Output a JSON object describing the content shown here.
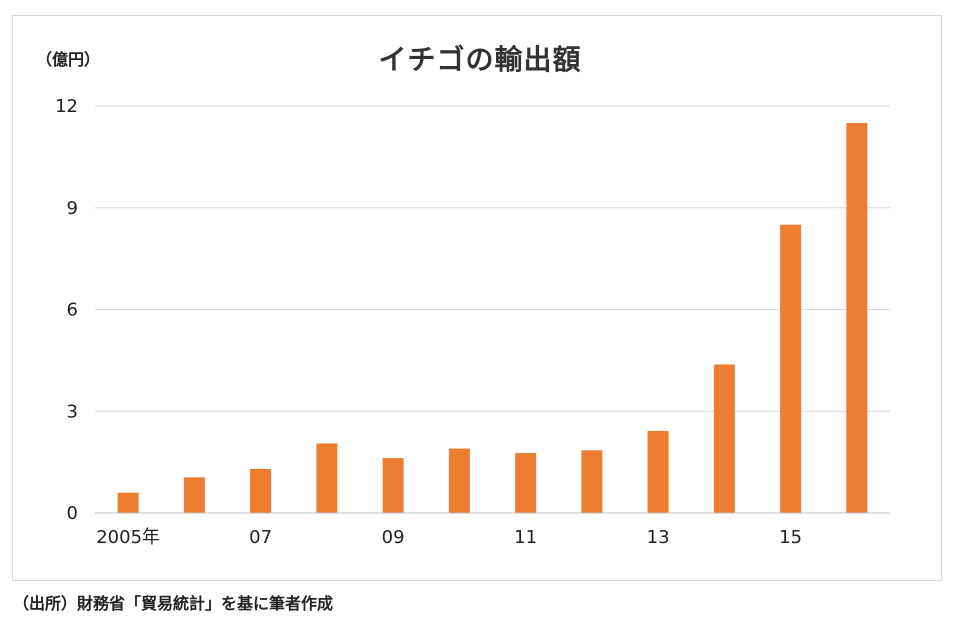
{
  "unit_label": "（億円）",
  "title": "イチゴの輸出額",
  "source": "（出所）財務省「貿易統計」を基に筆者作成",
  "colors": {
    "bar": "#ed7d31",
    "grid": "#d9d9d9",
    "axis": "#bfbfbf"
  },
  "chart_data": {
    "type": "bar",
    "title": "イチゴの輸出額",
    "ylabel": "（億円）",
    "xlabel": "",
    "categories": [
      "2005",
      "2006",
      "2007",
      "2008",
      "2009",
      "2010",
      "2011",
      "2012",
      "2013",
      "2014",
      "2015",
      "2016"
    ],
    "x_tick_labels": [
      "2005年",
      "",
      "07",
      "",
      "09",
      "",
      "11",
      "",
      "13",
      "",
      "15",
      ""
    ],
    "values": [
      0.6,
      1.05,
      1.3,
      2.05,
      1.62,
      1.9,
      1.77,
      1.85,
      2.42,
      4.38,
      8.5,
      11.5
    ],
    "ylim": [
      0,
      12
    ],
    "yticks": [
      0,
      3,
      6,
      9,
      12
    ],
    "grid": true,
    "legend": "none"
  }
}
